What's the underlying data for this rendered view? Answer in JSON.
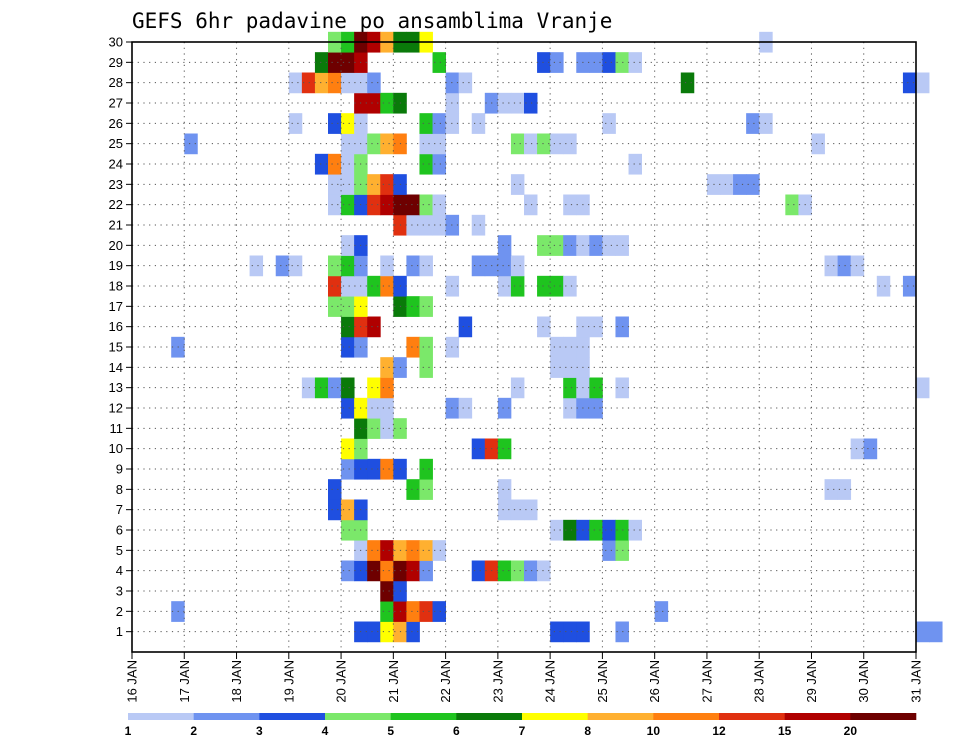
{
  "chart_data": {
    "type": "heatmap",
    "title": "GEFS 6hr padavine po ansamblima Vranje",
    "xlabel": "",
    "ylabel": "",
    "x_ticks": [
      "16 JAN",
      "17 JAN",
      "18 JAN",
      "19 JAN",
      "20 JAN",
      "21 JAN",
      "22 JAN",
      "23 JAN",
      "24 JAN",
      "25 JAN",
      "26 JAN",
      "27 JAN",
      "28 JAN",
      "29 JAN",
      "30 JAN",
      "31 JAN"
    ],
    "y_ticks": [
      "1",
      "2",
      "3",
      "4",
      "5",
      "6",
      "7",
      "8",
      "9",
      "10",
      "11",
      "12",
      "13",
      "14",
      "15",
      "16",
      "17",
      "18",
      "19",
      "20",
      "21",
      "22",
      "23",
      "24",
      "25",
      "26",
      "27",
      "28",
      "29",
      "30"
    ],
    "ylim": [
      0,
      30
    ],
    "grid": "dotted",
    "colorbar": {
      "labels": [
        "1",
        "2",
        "3",
        "4",
        "5",
        "6",
        "7",
        "8",
        "10",
        "12",
        "15",
        "20"
      ],
      "colors": [
        "#b9c9f5",
        "#6f93f0",
        "#1f4fe0",
        "#7be86a",
        "#1fc41f",
        "#0a7a0a",
        "#ffff00",
        "#ffb030",
        "#ff7f10",
        "#e03010",
        "#b00000",
        "#6e0000"
      ]
    },
    "start_label": "16 JAN",
    "step_hours": 6,
    "members": [
      {
        "member": 1,
        "cells": [
          [
            17,
            3
          ],
          [
            18,
            3
          ],
          [
            19,
            7
          ],
          [
            20,
            8
          ],
          [
            21,
            3
          ],
          [
            32,
            3
          ],
          [
            33,
            3
          ],
          [
            34,
            3
          ],
          [
            37,
            2
          ],
          [
            60,
            2
          ],
          [
            61,
            2
          ]
        ]
      },
      {
        "member": 2,
        "cells": [
          [
            3,
            2
          ],
          [
            19,
            5
          ],
          [
            20,
            11
          ],
          [
            21,
            9
          ],
          [
            22,
            10
          ],
          [
            23,
            3
          ],
          [
            40,
            2
          ]
        ]
      },
      {
        "member": 3,
        "cells": [
          [
            19,
            12
          ],
          [
            20,
            3
          ]
        ]
      },
      {
        "member": 4,
        "cells": [
          [
            16,
            2
          ],
          [
            17,
            3
          ],
          [
            18,
            12
          ],
          [
            19,
            9
          ],
          [
            20,
            12
          ],
          [
            21,
            11
          ],
          [
            22,
            2
          ],
          [
            26,
            3
          ],
          [
            27,
            10
          ],
          [
            28,
            5
          ],
          [
            29,
            4
          ],
          [
            30,
            2
          ],
          [
            31,
            1
          ]
        ]
      },
      {
        "member": 5,
        "cells": [
          [
            17,
            1
          ],
          [
            18,
            9
          ],
          [
            19,
            11
          ],
          [
            20,
            8
          ],
          [
            21,
            9
          ],
          [
            22,
            8
          ],
          [
            23,
            1
          ],
          [
            36,
            2
          ],
          [
            37,
            4
          ]
        ]
      },
      {
        "member": 6,
        "cells": [
          [
            16,
            4
          ],
          [
            17,
            4
          ],
          [
            32,
            1
          ],
          [
            33,
            6
          ],
          [
            34,
            3
          ],
          [
            35,
            5
          ],
          [
            36,
            3
          ],
          [
            37,
            5
          ],
          [
            38,
            1
          ]
        ]
      },
      {
        "member": 7,
        "cells": [
          [
            15,
            3
          ],
          [
            16,
            8
          ],
          [
            17,
            3
          ],
          [
            28,
            1
          ],
          [
            29,
            1
          ],
          [
            30,
            1
          ]
        ]
      },
      {
        "member": 8,
        "cells": [
          [
            15,
            3
          ],
          [
            21,
            5
          ],
          [
            22,
            4
          ],
          [
            28,
            1
          ],
          [
            53,
            1
          ],
          [
            54,
            1
          ]
        ]
      },
      {
        "member": 9,
        "cells": [
          [
            16,
            2
          ],
          [
            17,
            3
          ],
          [
            18,
            3
          ],
          [
            19,
            9
          ],
          [
            20,
            3
          ],
          [
            22,
            5
          ]
        ]
      },
      {
        "member": 10,
        "cells": [
          [
            16,
            7
          ],
          [
            17,
            4
          ],
          [
            26,
            3
          ],
          [
            27,
            10
          ],
          [
            28,
            5
          ],
          [
            55,
            1
          ],
          [
            56,
            2
          ]
        ]
      },
      {
        "member": 11,
        "cells": [
          [
            17,
            6
          ],
          [
            18,
            4
          ],
          [
            19,
            1
          ],
          [
            20,
            4
          ]
        ]
      },
      {
        "member": 12,
        "cells": [
          [
            16,
            3
          ],
          [
            17,
            7
          ],
          [
            18,
            1
          ],
          [
            19,
            1
          ],
          [
            24,
            2
          ],
          [
            25,
            1
          ],
          [
            28,
            2
          ],
          [
            33,
            1
          ],
          [
            34,
            2
          ],
          [
            35,
            2
          ]
        ]
      },
      {
        "member": 13,
        "cells": [
          [
            13,
            1
          ],
          [
            14,
            5
          ],
          [
            15,
            2
          ],
          [
            16,
            6
          ],
          [
            18,
            7
          ],
          [
            19,
            9
          ],
          [
            29,
            1
          ],
          [
            33,
            5
          ],
          [
            34,
            1
          ],
          [
            35,
            5
          ],
          [
            37,
            1
          ],
          [
            60,
            1
          ]
        ]
      },
      {
        "member": 14,
        "cells": [
          [
            19,
            8
          ],
          [
            20,
            2
          ],
          [
            22,
            4
          ],
          [
            32,
            1
          ],
          [
            33,
            1
          ],
          [
            34,
            1
          ]
        ]
      },
      {
        "member": 15,
        "cells": [
          [
            3,
            2
          ],
          [
            16,
            3
          ],
          [
            17,
            2
          ],
          [
            21,
            9
          ],
          [
            22,
            4
          ],
          [
            24,
            1
          ],
          [
            32,
            1
          ],
          [
            33,
            1
          ],
          [
            34,
            1
          ]
        ]
      },
      {
        "member": 16,
        "cells": [
          [
            16,
            6
          ],
          [
            17,
            10
          ],
          [
            18,
            11
          ],
          [
            25,
            3
          ],
          [
            31,
            1
          ],
          [
            34,
            1
          ],
          [
            35,
            1
          ],
          [
            37,
            2
          ]
        ]
      },
      {
        "member": 17,
        "cells": [
          [
            15,
            4
          ],
          [
            16,
            4
          ],
          [
            17,
            7
          ],
          [
            20,
            6
          ],
          [
            21,
            5
          ],
          [
            22,
            4
          ]
        ]
      },
      {
        "member": 18,
        "cells": [
          [
            15,
            10
          ],
          [
            16,
            1
          ],
          [
            17,
            1
          ],
          [
            18,
            5
          ],
          [
            19,
            9
          ],
          [
            20,
            3
          ],
          [
            24,
            1
          ],
          [
            28,
            1
          ],
          [
            29,
            5
          ],
          [
            31,
            5
          ],
          [
            32,
            5
          ],
          [
            33,
            1
          ],
          [
            57,
            1
          ],
          [
            59,
            2
          ]
        ]
      },
      {
        "member": 19,
        "cells": [
          [
            9,
            1
          ],
          [
            11,
            2
          ],
          [
            12,
            1
          ],
          [
            15,
            4
          ],
          [
            16,
            5
          ],
          [
            17,
            2
          ],
          [
            19,
            1
          ],
          [
            21,
            2
          ],
          [
            22,
            1
          ],
          [
            26,
            2
          ],
          [
            27,
            2
          ],
          [
            28,
            2
          ],
          [
            29,
            1
          ],
          [
            53,
            1
          ],
          [
            54,
            2
          ],
          [
            55,
            1
          ]
        ]
      },
      {
        "member": 20,
        "cells": [
          [
            16,
            1
          ],
          [
            17,
            3
          ],
          [
            28,
            2
          ],
          [
            31,
            4
          ],
          [
            32,
            4
          ],
          [
            33,
            2
          ],
          [
            34,
            1
          ],
          [
            35,
            2
          ],
          [
            36,
            1
          ],
          [
            37,
            1
          ]
        ]
      },
      {
        "member": 21,
        "cells": [
          [
            20,
            10
          ],
          [
            21,
            1
          ],
          [
            22,
            1
          ],
          [
            23,
            1
          ],
          [
            24,
            2
          ],
          [
            26,
            1
          ]
        ]
      },
      {
        "member": 22,
        "cells": [
          [
            15,
            1
          ],
          [
            16,
            5
          ],
          [
            17,
            3
          ],
          [
            18,
            10
          ],
          [
            19,
            11
          ],
          [
            20,
            12
          ],
          [
            21,
            12
          ],
          [
            22,
            4
          ],
          [
            23,
            1
          ],
          [
            30,
            1
          ],
          [
            33,
            1
          ],
          [
            34,
            1
          ],
          [
            50,
            4
          ],
          [
            51,
            1
          ]
        ]
      },
      {
        "member": 23,
        "cells": [
          [
            15,
            1
          ],
          [
            16,
            1
          ],
          [
            17,
            4
          ],
          [
            18,
            8
          ],
          [
            19,
            10
          ],
          [
            20,
            3
          ],
          [
            29,
            1
          ],
          [
            44,
            1
          ],
          [
            45,
            1
          ],
          [
            46,
            2
          ],
          [
            47,
            2
          ]
        ]
      },
      {
        "member": 24,
        "cells": [
          [
            14,
            3
          ],
          [
            15,
            9
          ],
          [
            16,
            1
          ],
          [
            17,
            4
          ],
          [
            22,
            5
          ],
          [
            23,
            2
          ],
          [
            38,
            1
          ]
        ]
      },
      {
        "member": 25,
        "cells": [
          [
            4,
            2
          ],
          [
            16,
            1
          ],
          [
            17,
            1
          ],
          [
            18,
            4
          ],
          [
            19,
            8
          ],
          [
            20,
            9
          ],
          [
            22,
            1
          ],
          [
            23,
            1
          ],
          [
            29,
            4
          ],
          [
            30,
            1
          ],
          [
            31,
            4
          ],
          [
            32,
            1
          ],
          [
            33,
            1
          ],
          [
            52,
            1
          ]
        ]
      },
      {
        "member": 26,
        "cells": [
          [
            12,
            1
          ],
          [
            15,
            3
          ],
          [
            16,
            7
          ],
          [
            17,
            1
          ],
          [
            22,
            5
          ],
          [
            23,
            2
          ],
          [
            24,
            1
          ],
          [
            26,
            1
          ],
          [
            36,
            1
          ],
          [
            47,
            2
          ],
          [
            48,
            1
          ]
        ]
      },
      {
        "member": 27,
        "cells": [
          [
            17,
            11
          ],
          [
            18,
            11
          ],
          [
            19,
            5
          ],
          [
            20,
            6
          ],
          [
            24,
            1
          ],
          [
            27,
            2
          ],
          [
            28,
            1
          ],
          [
            29,
            1
          ],
          [
            30,
            3
          ]
        ]
      },
      {
        "member": 28,
        "cells": [
          [
            12,
            1
          ],
          [
            13,
            10
          ],
          [
            14,
            8
          ],
          [
            15,
            9
          ],
          [
            16,
            1
          ],
          [
            17,
            1
          ],
          [
            18,
            2
          ],
          [
            24,
            2
          ],
          [
            25,
            1
          ],
          [
            42,
            6
          ],
          [
            59,
            3
          ],
          [
            60,
            1
          ]
        ]
      },
      {
        "member": 29,
        "cells": [
          [
            14,
            6
          ],
          [
            15,
            12
          ],
          [
            16,
            12
          ],
          [
            17,
            11
          ],
          [
            23,
            5
          ],
          [
            31,
            3
          ],
          [
            32,
            2
          ],
          [
            34,
            2
          ],
          [
            35,
            2
          ],
          [
            36,
            3
          ],
          [
            37,
            4
          ],
          [
            38,
            1
          ]
        ]
      },
      {
        "member": 30,
        "cells": [
          [
            15,
            4
          ],
          [
            16,
            5
          ],
          [
            17,
            12
          ],
          [
            18,
            11
          ],
          [
            19,
            8
          ],
          [
            20,
            6
          ],
          [
            21,
            6
          ],
          [
            22,
            7
          ],
          [
            48,
            1
          ]
        ]
      }
    ]
  }
}
